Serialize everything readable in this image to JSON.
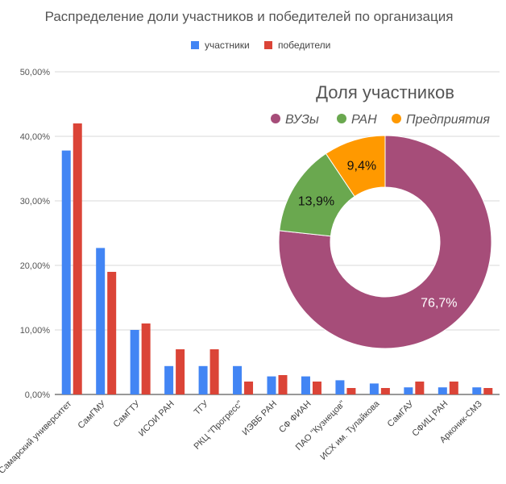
{
  "chart_data": [
    {
      "type": "bar",
      "title": "Распределение доли участников и победителей по организация",
      "ylabels": [
        "0,00%",
        "10,00%",
        "20,00%",
        "30,00%",
        "40,00%",
        "50,00%"
      ],
      "ylim": [
        0,
        50
      ],
      "legend_position": "top",
      "categories": [
        "Самарский университет",
        "СамГМУ",
        "СамГТУ",
        "ИСОИ РАН",
        "ТГУ",
        "РКЦ \"Прогресс\"",
        "ИЭВБ РАН",
        "СФ ФИАН",
        "ПАО \"Кузнецов\"",
        "ИСХ им. Тулайкова",
        "СамГАУ",
        "СФИЦ РАН",
        "Арконик-СМЗ"
      ],
      "series": [
        {
          "name": "участники",
          "color": "#4285f4",
          "values": [
            37.8,
            22.7,
            10.0,
            4.4,
            4.4,
            4.4,
            2.8,
            2.8,
            2.2,
            1.7,
            1.1,
            1.1,
            1.1
          ]
        },
        {
          "name": "победители",
          "color": "#db4437",
          "values": [
            42.0,
            19.0,
            11.0,
            7.0,
            7.0,
            2.0,
            3.0,
            2.0,
            1.0,
            1.0,
            2.0,
            2.0,
            1.0
          ]
        }
      ]
    },
    {
      "type": "pie",
      "title": "Доля участников",
      "legend_position": "top",
      "slices": [
        {
          "name": "ВУЗы",
          "value": 76.7,
          "label": "76,7%",
          "color": "#a64d79",
          "label_color": "#ffffff"
        },
        {
          "name": "РАН",
          "value": 13.9,
          "label": "13,9%",
          "color": "#6aa84f",
          "label_color": "#111111"
        },
        {
          "name": "Предприятия",
          "value": 9.4,
          "label": "9,4%",
          "color": "#ff9900",
          "label_color": "#111111"
        }
      ]
    }
  ]
}
